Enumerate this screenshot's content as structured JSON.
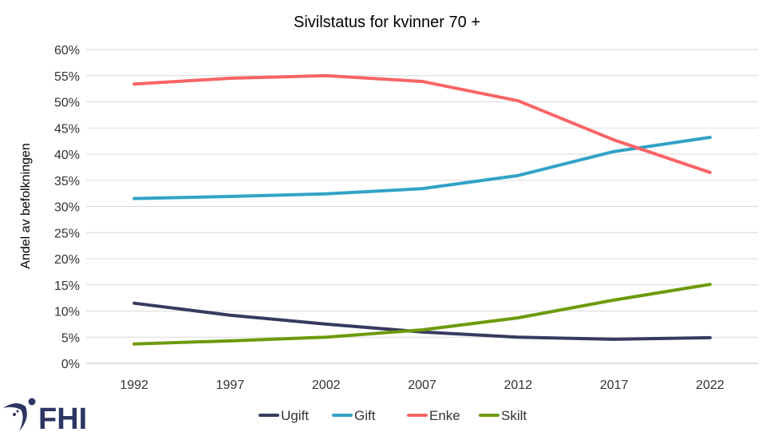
{
  "chart_data": {
    "type": "line",
    "title": "Sivilstatus for kvinner 70 +",
    "xlabel": "",
    "ylabel": "Andel av befolkningen",
    "x": [
      "1992",
      "1997",
      "2002",
      "2007",
      "2012",
      "2017",
      "2022"
    ],
    "ylim": [
      0,
      60
    ],
    "yticks": [
      0,
      5,
      10,
      15,
      20,
      25,
      30,
      35,
      40,
      45,
      50,
      55,
      60
    ],
    "ytick_suffix": "%",
    "grid": true,
    "legend_position": "bottom",
    "series": [
      {
        "name": "Ugift",
        "color": "#363b5e",
        "values": [
          11.5,
          9.2,
          7.5,
          6.0,
          5.0,
          4.6,
          4.9
        ]
      },
      {
        "name": "Gift",
        "color": "#31a3c6",
        "values": [
          31.5,
          31.9,
          32.4,
          33.4,
          35.9,
          40.5,
          43.2
        ]
      },
      {
        "name": "Enke",
        "color": "#fa6464",
        "values": [
          53.4,
          54.5,
          55.0,
          53.9,
          50.2,
          42.7,
          36.5
        ]
      },
      {
        "name": "Skilt",
        "color": "#6d9a0a",
        "values": [
          3.7,
          4.3,
          5.0,
          6.4,
          8.7,
          12.1,
          15.1
        ]
      }
    ]
  },
  "logo": {
    "text": "FHI",
    "color": "#2c3563"
  }
}
